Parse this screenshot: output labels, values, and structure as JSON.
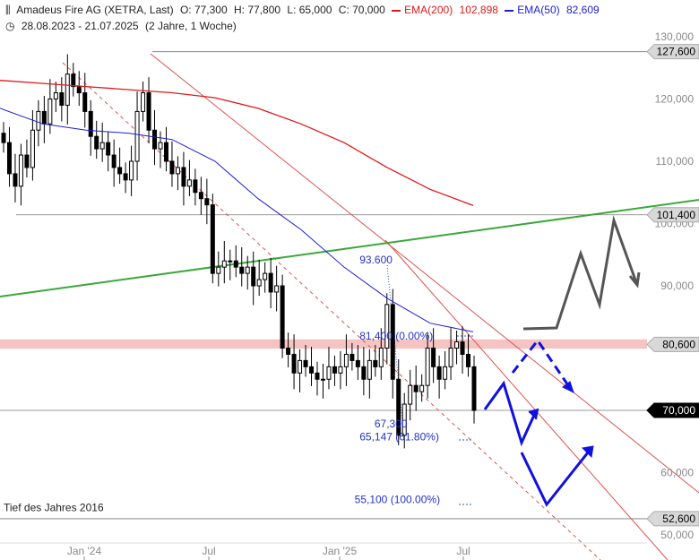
{
  "header": {
    "title": "Amadeus Fire AG (XETRA, Last)",
    "open": "O: 77,300",
    "high": "H: 77,800",
    "low": "L: 65,000",
    "close": "C: 70,000",
    "ema200_label": "EMA(200)",
    "ema200_value": "102,898",
    "ema50_label": "EMA(50)",
    "ema50_value": "82,609",
    "period": "28.08.2023 - 21.07.2025",
    "span": "(2 Jahre, 1 Woche)"
  },
  "colors": {
    "ema200": "#e01818",
    "ema50": "#1d1dd6",
    "trend_green": "#3aa83a",
    "channel_red": "#e05050",
    "resistance_band": "#f4b8b8",
    "projection_blue": "#1010e0",
    "projection_gray": "#555555"
  },
  "chart_data": {
    "type": "candlestick",
    "ylim": [
      47000,
      133000
    ],
    "y_ticks": [
      "130,000",
      "120,000",
      "110,000",
      "100,000",
      "90,000",
      "60,000",
      "50,000"
    ],
    "x_ticks": [
      "Jan '24",
      "Jul",
      "Jan '25",
      "Jul"
    ],
    "price_tags": [
      {
        "label": "127,600",
        "value": 127600
      },
      {
        "label": "101,400",
        "value": 101400
      },
      {
        "label": "80,600",
        "value": 80600
      },
      {
        "label": "70,000",
        "value": 70000,
        "current": true
      },
      {
        "label": "52,600",
        "value": 52600
      }
    ],
    "annotations": [
      {
        "text": "93.600",
        "x": 2025.09,
        "y": 93600
      },
      {
        "text": "81,400 (0.00%)",
        "x": 2025.09,
        "y": 81400
      },
      {
        "text": "67,300",
        "x": 2025.15,
        "y": 67300
      },
      {
        "text": "65,147 (61.80%)",
        "x": 2025.09,
        "y": 65147
      },
      {
        "text": "55,100 (100.00%)",
        "x": 2025.07,
        "y": 55100
      },
      {
        "text": "Tief des Jahres 2016",
        "x": 2023.66,
        "y": 53800
      }
    ],
    "candles_close": [
      113000,
      108000,
      106000,
      111000,
      109000,
      115000,
      118000,
      116000,
      120000,
      121000,
      119000,
      124000,
      122000,
      121000,
      118000,
      114000,
      112000,
      113000,
      111000,
      109000,
      108000,
      107000,
      110000,
      118000,
      121000,
      115000,
      112000,
      113000,
      110000,
      108000,
      109000,
      106000,
      107000,
      105000,
      104000,
      103000,
      92000,
      93000,
      94000,
      94000,
      93000,
      92000,
      93000,
      90000,
      91000,
      92000,
      89000,
      90000,
      80000,
      79000,
      76000,
      78000,
      77000,
      76000,
      75000,
      75000,
      77000,
      76000,
      77000,
      79000,
      78000,
      77000,
      75000,
      78000,
      77000,
      80000,
      87000,
      75000,
      66000,
      71000,
      74000,
      73000,
      74000,
      80000,
      77000,
      75000,
      77000,
      80000,
      81000,
      79000,
      77000,
      70000
    ],
    "series": [
      {
        "name": "EMA(200)",
        "values": [
          123000,
          122500,
          122000,
          121500,
          121000,
          120200,
          118500,
          116000,
          113000,
          109000,
          105500,
          102898
        ]
      },
      {
        "name": "EMA(50)",
        "values": [
          118500,
          116000,
          115000,
          114500,
          113500,
          110000,
          104000,
          99000,
          93000,
          88000,
          84000,
          82609
        ]
      }
    ]
  }
}
